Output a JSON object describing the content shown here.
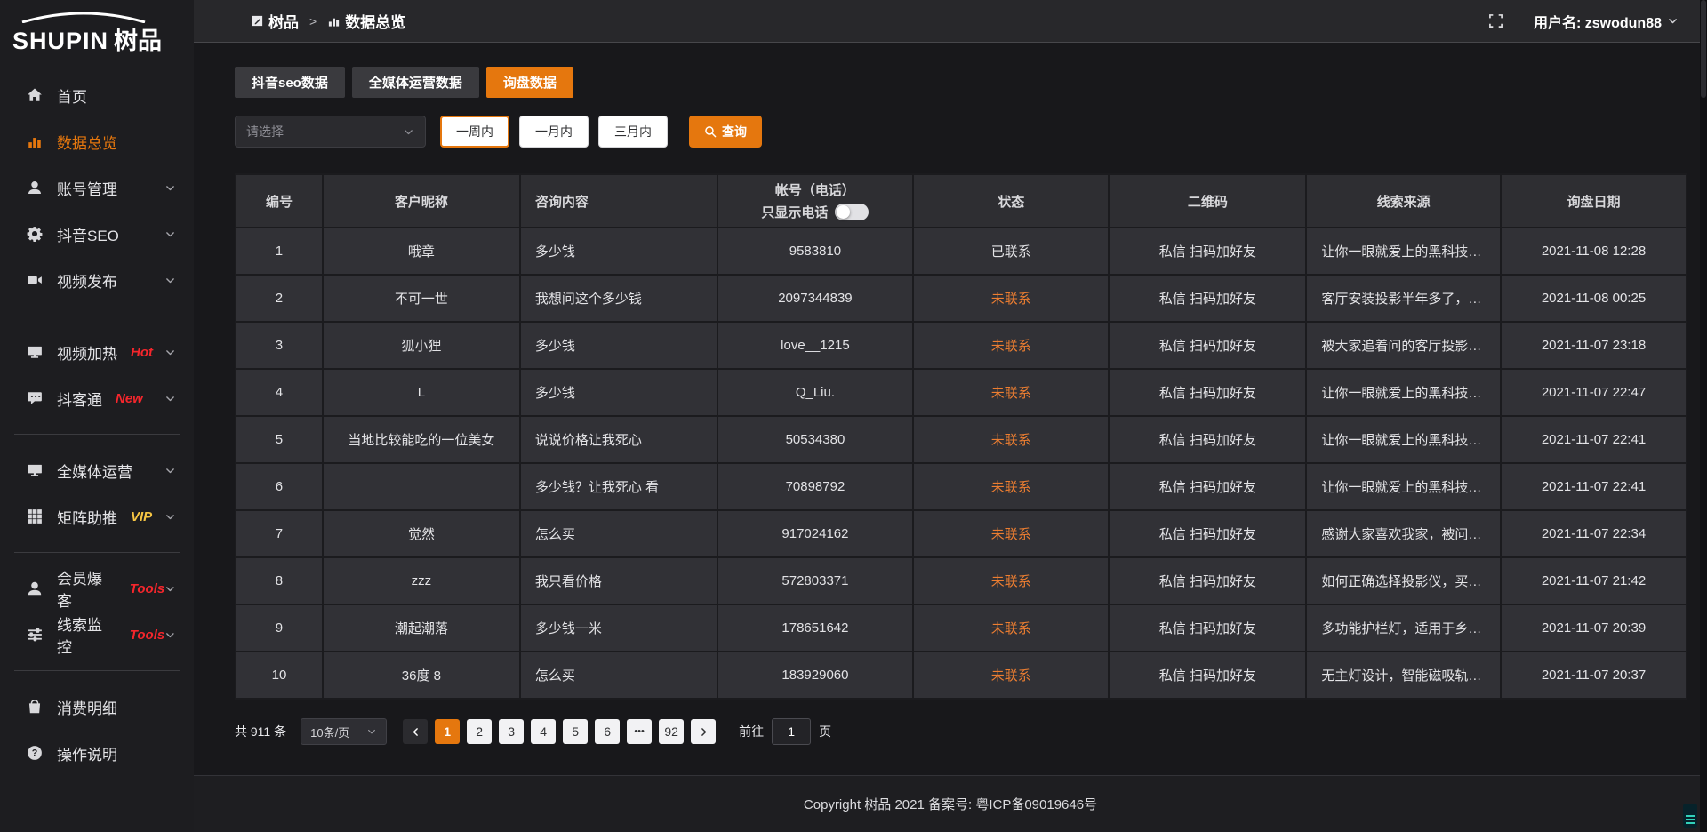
{
  "colors": {
    "accent": "#e5770e",
    "orange_link": "#ed7e31",
    "badge_red": "#f5262c",
    "badge_yellow": "#f6c543"
  },
  "sidebar": {
    "logo_en": "SHUPIN",
    "logo_cn": "树品",
    "items": [
      {
        "key": "home",
        "label": "首页",
        "icon": "home-icon"
      },
      {
        "key": "data-overview",
        "label": "数据总览",
        "icon": "bar-chart-icon",
        "active": true
      },
      {
        "key": "account-management",
        "label": "账号管理",
        "icon": "user-icon",
        "expandable": true
      },
      {
        "key": "douyin-seo",
        "label": "抖音SEO",
        "icon": "gear-icon",
        "expandable": true
      },
      {
        "key": "video-publish",
        "label": "视频发布",
        "icon": "video-camera-icon",
        "expandable": true
      },
      {
        "divider": true
      },
      {
        "key": "video-heat",
        "label": "视频加热",
        "icon": "monitor-icon",
        "badge": "Hot",
        "badge_color": "red",
        "expandable": true
      },
      {
        "key": "douketong",
        "label": "抖客通",
        "icon": "chat-icon",
        "badge": "New",
        "badge_color": "red",
        "expandable": true
      },
      {
        "divider": true
      },
      {
        "key": "media-operation",
        "label": "全媒体运营",
        "icon": "monitor-icon",
        "expandable": true
      },
      {
        "key": "matrix-boost",
        "label": "矩阵助推",
        "icon": "grid-icon",
        "badge": "VIP",
        "badge_color": "yellow",
        "expandable": true
      },
      {
        "divider": true
      },
      {
        "key": "member-burst",
        "label": "会员爆客",
        "icon": "person-icon",
        "badge": "Tools",
        "badge_color": "red",
        "expandable": true
      },
      {
        "key": "lead-monitor",
        "label": "线索监控",
        "icon": "sliders-icon",
        "badge": "Tools",
        "badge_color": "red",
        "expandable": true
      },
      {
        "divider": true
      },
      {
        "key": "expense-detail",
        "label": "消费明细",
        "icon": "bag-icon"
      },
      {
        "key": "operation-guide",
        "label": "操作说明",
        "icon": "question-circle-icon"
      }
    ]
  },
  "header": {
    "breadcrumb_root": "树品",
    "breadcrumb_separator": ">",
    "breadcrumb_current": "数据总览",
    "username": "用户名: zswodun88"
  },
  "tabs": [
    {
      "label": "抖音seo数据",
      "active": false
    },
    {
      "label": "全媒体运营数据",
      "active": false
    },
    {
      "label": "询盘数据",
      "active": true
    }
  ],
  "filters": {
    "select_placeholder": "请选择",
    "ranges": [
      {
        "label": "一周内",
        "selected": true
      },
      {
        "label": "一月内",
        "selected": false
      },
      {
        "label": "三月内",
        "selected": false
      }
    ],
    "search_label": "查询"
  },
  "table": {
    "columns": [
      "编号",
      "客户昵称",
      "咨询内容",
      "帐号（电话）",
      "状态",
      "二维码",
      "线索来源",
      "询盘日期"
    ],
    "phone_toggle_label": "只显示电话",
    "phone_toggle_on": false,
    "rows": [
      {
        "id": "1",
        "nickname": "哦章",
        "content": "多少钱",
        "account": "9583810",
        "status": "已联系",
        "qrcode": "私信 扫码加好友",
        "source": "让你一眼就爱上的黑科技，能...",
        "date": "2021-11-08 12:28"
      },
      {
        "id": "2",
        "nickname": "不可一世",
        "content": "我想问这个多少钱",
        "account": "2097344839",
        "status": "未联系",
        "qrcode": "私信 扫码加好友",
        "source": "客厅安装投影半年多了，真实...",
        "date": "2021-11-08 00:25"
      },
      {
        "id": "3",
        "nickname": "狐小狸",
        "content": "多少钱",
        "account": "love__1215",
        "status": "未联系",
        "qrcode": "私信 扫码加好友",
        "source": "被大家追着问的客厅投影分享...",
        "date": "2021-11-07 23:18"
      },
      {
        "id": "4",
        "nickname": "L",
        "content": "多少钱",
        "account": "Q_Liu.",
        "status": "未联系",
        "qrcode": "私信 扫码加好友",
        "source": "让你一眼就爱上的黑科技，能...",
        "date": "2021-11-07 22:47"
      },
      {
        "id": "5",
        "nickname": "当地比较能吃的一位美女",
        "content": "说说价格让我死心",
        "account": "50534380",
        "status": "未联系",
        "qrcode": "私信 扫码加好友",
        "source": "让你一眼就爱上的黑科技，能...",
        "date": "2021-11-07 22:41"
      },
      {
        "id": "6",
        "nickname": "",
        "content": "多少钱？让我死心 看",
        "account": "70898792",
        "status": "未联系",
        "qrcode": "私信 扫码加好友",
        "source": "让你一眼就爱上的黑科技，能...",
        "date": "2021-11-07 22:41"
      },
      {
        "id": "7",
        "nickname": "觉然",
        "content": "怎么买",
        "account": "917024162",
        "status": "未联系",
        "qrcode": "私信 扫码加好友",
        "source": "感谢大家喜欢我家，被问了好...",
        "date": "2021-11-07 22:34"
      },
      {
        "id": "8",
        "nickname": "zzz",
        "content": "我只看价格",
        "account": "572803371",
        "status": "未联系",
        "qrcode": "私信 扫码加好友",
        "source": "如何正确选择投影仪，买投影...",
        "date": "2021-11-07 21:42"
      },
      {
        "id": "9",
        "nickname": "潮起潮落",
        "content": "多少钱一米",
        "account": "178651642",
        "status": "未联系",
        "qrcode": "私信 扫码加好友",
        "source": "多功能护栏灯，适用于乡村文...",
        "date": "2021-11-07 20:39"
      },
      {
        "id": "10",
        "nickname": "36度 8",
        "content": "怎么买",
        "account": "183929060",
        "status": "未联系",
        "qrcode": "私信 扫码加好友",
        "source": "无主灯设计，智能磁吸轨道灯...",
        "date": "2021-11-07 20:37"
      }
    ]
  },
  "pagination": {
    "total": "共 911 条",
    "page_size": "10条/页",
    "pages": [
      "1",
      "2",
      "3",
      "4",
      "5",
      "6",
      "•••",
      "92"
    ],
    "current": "1",
    "goto_label": "前往",
    "goto_value": "1",
    "goto_suffix": "页"
  },
  "footer": {
    "copyright": "Copyright 树品 2021 备案号: 粤ICP备09019646号"
  }
}
